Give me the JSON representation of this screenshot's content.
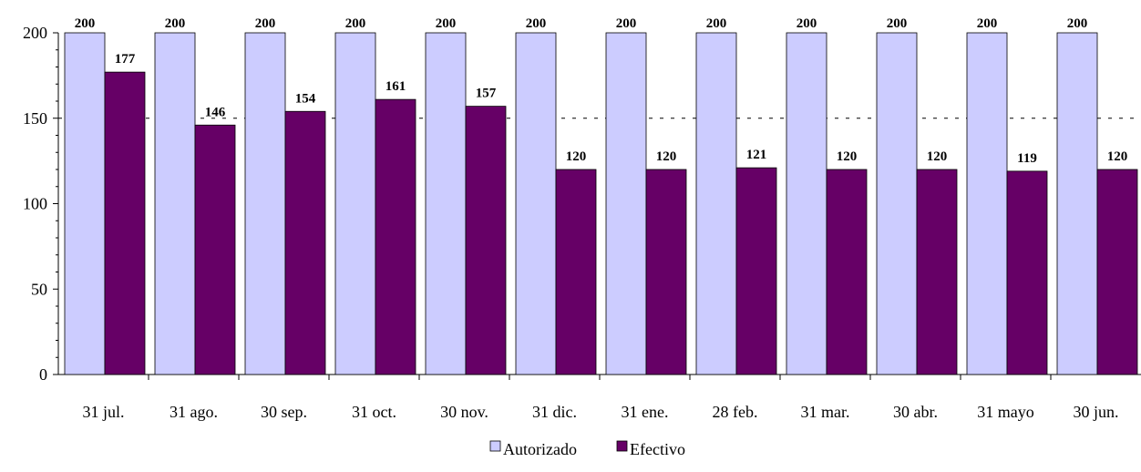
{
  "chart_data": {
    "type": "bar",
    "categories": [
      "31 jul.",
      "31 ago.",
      "30 sep.",
      "31 oct.",
      "30 nov.",
      "31 dic.",
      "31 ene.",
      "28 feb.",
      "31 mar.",
      "30 abr.",
      "31 mayo",
      "30 jun."
    ],
    "series": [
      {
        "name": "Autorizado",
        "color": "#ccccff",
        "values": [
          200,
          200,
          200,
          200,
          200,
          200,
          200,
          200,
          200,
          200,
          200,
          200
        ]
      },
      {
        "name": "Efectivo",
        "color": "#660066",
        "values": [
          177,
          146,
          154,
          161,
          157,
          120,
          120,
          121,
          120,
          120,
          119,
          120
        ]
      }
    ],
    "ylim": [
      0,
      200
    ],
    "yticks": [
      0,
      50,
      100,
      150,
      200
    ],
    "grid": "dashed horizontal at 150",
    "legend_position": "bottom-center"
  }
}
